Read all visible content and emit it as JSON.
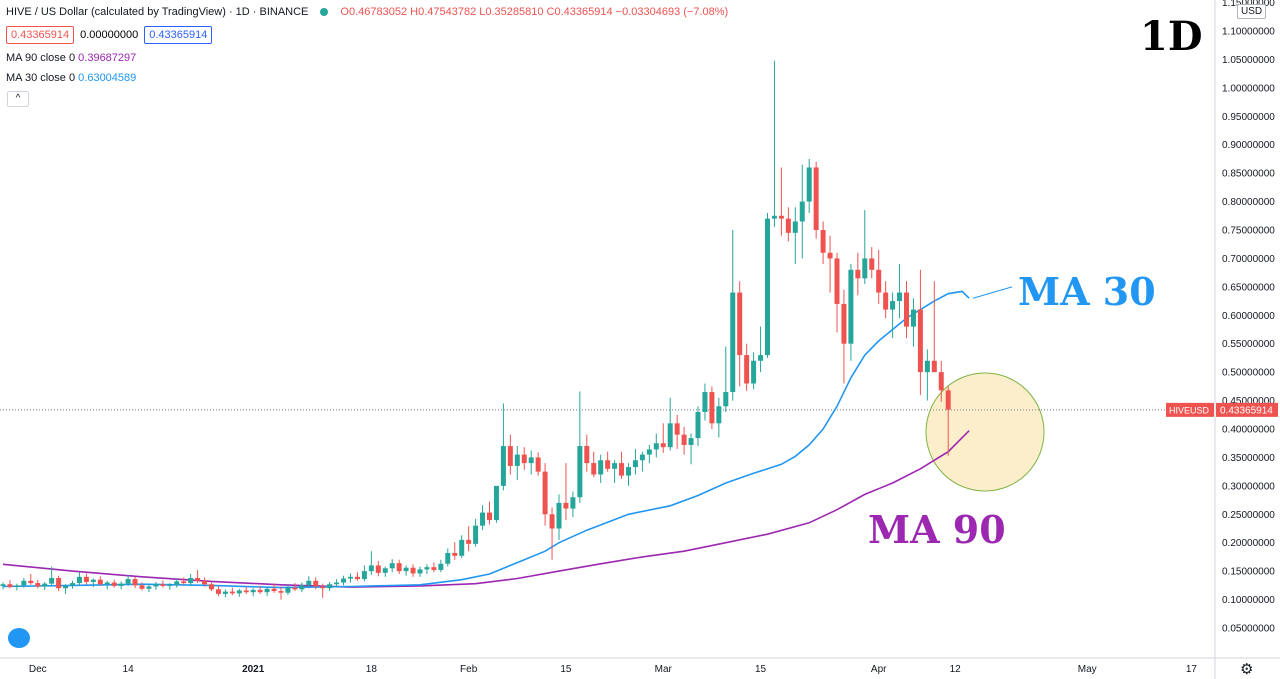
{
  "header": {
    "title": "HIVE / US Dollar (calculated by TradingView) · 1D · BINANCE",
    "ohlc": "O0.46783052 H0.47543782 L0.35285810 C0.43365914 −0.03304693 (−7.08%)",
    "price_box_1": "0.43365914",
    "price_box_2": "0.00000000",
    "price_box_3": "0.43365914",
    "ma90_label": "MA 90 close 0",
    "ma90_value": "0.39687297",
    "ma30_label": "MA 30 close 0",
    "ma30_value": "0.63004589",
    "collapse_glyph": "^"
  },
  "axis": {
    "currency": "USD",
    "symbol_tag": "HIVEUSD",
    "last_price": "0.43365914"
  },
  "annotations": {
    "timeframe": "1D",
    "ma30": "MA 30",
    "ma90": "MA 90"
  },
  "colors": {
    "up": "#26a69a",
    "down": "#ef5350",
    "ma30": "#2196f3",
    "ma90": "#9c27b0",
    "highlight": "#fbe8b8"
  },
  "chart_data": {
    "type": "candlestick",
    "y_ticks": [
      "0.05000000",
      "0.10000000",
      "0.15000000",
      "0.20000000",
      "0.25000000",
      "0.30000000",
      "0.35000000",
      "0.40000000",
      "0.45000000",
      "0.50000000",
      "0.55000000",
      "0.60000000",
      "0.65000000",
      "0.70000000",
      "0.75000000",
      "0.80000000",
      "0.85000000",
      "0.90000000",
      "0.95000000",
      "1.00000000",
      "1.05000000",
      "1.10000000",
      "1.15000000"
    ],
    "ylim": [
      0.0,
      1.17
    ],
    "x_ticks": [
      {
        "label": "Dec",
        "day": 5
      },
      {
        "label": "14",
        "day": 18
      },
      {
        "label": "2021",
        "day": 36
      },
      {
        "label": "18",
        "day": 53
      },
      {
        "label": "Feb",
        "day": 67
      },
      {
        "label": "15",
        "day": 81
      },
      {
        "label": "Mar",
        "day": 95
      },
      {
        "label": "15",
        "day": 109
      },
      {
        "label": "Apr",
        "day": 126
      },
      {
        "label": "12",
        "day": 137
      },
      {
        "label": "May",
        "day": 156
      },
      {
        "label": "17",
        "day": 171
      }
    ],
    "candles": [
      [
        0.124,
        0.13,
        0.118,
        0.127
      ],
      [
        0.127,
        0.134,
        0.12,
        0.122
      ],
      [
        0.122,
        0.128,
        0.116,
        0.125
      ],
      [
        0.125,
        0.138,
        0.121,
        0.133
      ],
      [
        0.133,
        0.145,
        0.126,
        0.129
      ],
      [
        0.129,
        0.135,
        0.12,
        0.123
      ],
      [
        0.123,
        0.131,
        0.117,
        0.128
      ],
      [
        0.128,
        0.158,
        0.124,
        0.138
      ],
      [
        0.138,
        0.142,
        0.115,
        0.12
      ],
      [
        0.12,
        0.127,
        0.11,
        0.124
      ],
      [
        0.124,
        0.133,
        0.119,
        0.129
      ],
      [
        0.129,
        0.148,
        0.125,
        0.14
      ],
      [
        0.14,
        0.146,
        0.126,
        0.131
      ],
      [
        0.131,
        0.137,
        0.122,
        0.135
      ],
      [
        0.135,
        0.141,
        0.124,
        0.127
      ],
      [
        0.127,
        0.133,
        0.118,
        0.13
      ],
      [
        0.13,
        0.135,
        0.121,
        0.124
      ],
      [
        0.124,
        0.132,
        0.118,
        0.128
      ],
      [
        0.128,
        0.143,
        0.124,
        0.136
      ],
      [
        0.136,
        0.14,
        0.12,
        0.125
      ],
      [
        0.125,
        0.13,
        0.116,
        0.119
      ],
      [
        0.119,
        0.127,
        0.113,
        0.123
      ],
      [
        0.123,
        0.131,
        0.117,
        0.127
      ],
      [
        0.127,
        0.134,
        0.121,
        0.124
      ],
      [
        0.124,
        0.129,
        0.117,
        0.126
      ],
      [
        0.126,
        0.136,
        0.121,
        0.132
      ],
      [
        0.132,
        0.139,
        0.126,
        0.129
      ],
      [
        0.129,
        0.145,
        0.124,
        0.138
      ],
      [
        0.138,
        0.152,
        0.129,
        0.133
      ],
      [
        0.133,
        0.139,
        0.123,
        0.127
      ],
      [
        0.127,
        0.132,
        0.115,
        0.118
      ],
      [
        0.118,
        0.124,
        0.106,
        0.11
      ],
      [
        0.11,
        0.118,
        0.104,
        0.114
      ],
      [
        0.114,
        0.121,
        0.108,
        0.111
      ],
      [
        0.111,
        0.119,
        0.105,
        0.116
      ],
      [
        0.116,
        0.123,
        0.11,
        0.113
      ],
      [
        0.113,
        0.12,
        0.106,
        0.117
      ],
      [
        0.117,
        0.124,
        0.11,
        0.113
      ],
      [
        0.113,
        0.122,
        0.106,
        0.119
      ],
      [
        0.119,
        0.128,
        0.112,
        0.115
      ],
      [
        0.115,
        0.123,
        0.1,
        0.112
      ],
      [
        0.112,
        0.126,
        0.108,
        0.121
      ],
      [
        0.121,
        0.129,
        0.115,
        0.118
      ],
      [
        0.118,
        0.13,
        0.113,
        0.125
      ],
      [
        0.125,
        0.141,
        0.12,
        0.133
      ],
      [
        0.133,
        0.139,
        0.118,
        0.123
      ],
      [
        0.123,
        0.128,
        0.103,
        0.12
      ],
      [
        0.12,
        0.131,
        0.115,
        0.127
      ],
      [
        0.127,
        0.136,
        0.121,
        0.13
      ],
      [
        0.13,
        0.142,
        0.125,
        0.137
      ],
      [
        0.137,
        0.146,
        0.13,
        0.14
      ],
      [
        0.14,
        0.148,
        0.133,
        0.136
      ],
      [
        0.136,
        0.16,
        0.132,
        0.15
      ],
      [
        0.15,
        0.185,
        0.143,
        0.16
      ],
      [
        0.16,
        0.168,
        0.141,
        0.147
      ],
      [
        0.147,
        0.158,
        0.14,
        0.155
      ],
      [
        0.155,
        0.171,
        0.148,
        0.164
      ],
      [
        0.164,
        0.17,
        0.145,
        0.15
      ],
      [
        0.15,
        0.16,
        0.142,
        0.156
      ],
      [
        0.156,
        0.162,
        0.14,
        0.146
      ],
      [
        0.146,
        0.158,
        0.14,
        0.153
      ],
      [
        0.153,
        0.162,
        0.145,
        0.157
      ],
      [
        0.157,
        0.165,
        0.148,
        0.152
      ],
      [
        0.152,
        0.17,
        0.148,
        0.163
      ],
      [
        0.163,
        0.19,
        0.158,
        0.182
      ],
      [
        0.182,
        0.201,
        0.17,
        0.177
      ],
      [
        0.177,
        0.213,
        0.173,
        0.205
      ],
      [
        0.205,
        0.229,
        0.185,
        0.198
      ],
      [
        0.198,
        0.242,
        0.193,
        0.23
      ],
      [
        0.23,
        0.266,
        0.222,
        0.253
      ],
      [
        0.253,
        0.272,
        0.232,
        0.24
      ],
      [
        0.24,
        0.29,
        0.235,
        0.3
      ],
      [
        0.3,
        0.445,
        0.292,
        0.37
      ],
      [
        0.37,
        0.39,
        0.32,
        0.335
      ],
      [
        0.335,
        0.37,
        0.31,
        0.355
      ],
      [
        0.355,
        0.368,
        0.328,
        0.34
      ],
      [
        0.34,
        0.362,
        0.32,
        0.35
      ],
      [
        0.35,
        0.359,
        0.318,
        0.325
      ],
      [
        0.325,
        0.34,
        0.23,
        0.25
      ],
      [
        0.25,
        0.262,
        0.17,
        0.225
      ],
      [
        0.225,
        0.285,
        0.205,
        0.27
      ],
      [
        0.27,
        0.34,
        0.24,
        0.26
      ],
      [
        0.26,
        0.29,
        0.245,
        0.28
      ],
      [
        0.28,
        0.466,
        0.27,
        0.37
      ],
      [
        0.37,
        0.39,
        0.325,
        0.34
      ],
      [
        0.34,
        0.36,
        0.315,
        0.32
      ],
      [
        0.32,
        0.355,
        0.305,
        0.345
      ],
      [
        0.345,
        0.36,
        0.325,
        0.33
      ],
      [
        0.33,
        0.345,
        0.305,
        0.34
      ],
      [
        0.34,
        0.36,
        0.312,
        0.318
      ],
      [
        0.318,
        0.34,
        0.3,
        0.333
      ],
      [
        0.333,
        0.365,
        0.32,
        0.345
      ],
      [
        0.345,
        0.36,
        0.325,
        0.355
      ],
      [
        0.355,
        0.372,
        0.34,
        0.364
      ],
      [
        0.364,
        0.392,
        0.35,
        0.375
      ],
      [
        0.375,
        0.41,
        0.358,
        0.368
      ],
      [
        0.368,
        0.455,
        0.362,
        0.41
      ],
      [
        0.41,
        0.425,
        0.365,
        0.39
      ],
      [
        0.39,
        0.404,
        0.355,
        0.372
      ],
      [
        0.372,
        0.392,
        0.338,
        0.384
      ],
      [
        0.384,
        0.44,
        0.37,
        0.43
      ],
      [
        0.43,
        0.48,
        0.415,
        0.465
      ],
      [
        0.465,
        0.475,
        0.4,
        0.41
      ],
      [
        0.41,
        0.455,
        0.385,
        0.44
      ],
      [
        0.44,
        0.545,
        0.43,
        0.465
      ],
      [
        0.465,
        0.75,
        0.45,
        0.64
      ],
      [
        0.64,
        0.66,
        0.475,
        0.53
      ],
      [
        0.53,
        0.55,
        0.467,
        0.48
      ],
      [
        0.48,
        0.535,
        0.47,
        0.52
      ],
      [
        0.52,
        0.58,
        0.5,
        0.53
      ],
      [
        0.53,
        0.78,
        0.525,
        0.77
      ],
      [
        0.77,
        1.048,
        0.755,
        0.775
      ],
      [
        0.775,
        0.86,
        0.74,
        0.77
      ],
      [
        0.77,
        0.79,
        0.73,
        0.745
      ],
      [
        0.745,
        0.79,
        0.69,
        0.765
      ],
      [
        0.765,
        0.865,
        0.7,
        0.8
      ],
      [
        0.8,
        0.875,
        0.78,
        0.86
      ],
      [
        0.86,
        0.87,
        0.735,
        0.75
      ],
      [
        0.75,
        0.765,
        0.69,
        0.71
      ],
      [
        0.71,
        0.74,
        0.64,
        0.7
      ],
      [
        0.7,
        0.71,
        0.57,
        0.62
      ],
      [
        0.62,
        0.645,
        0.48,
        0.55
      ],
      [
        0.55,
        0.69,
        0.52,
        0.68
      ],
      [
        0.68,
        0.71,
        0.635,
        0.665
      ],
      [
        0.665,
        0.785,
        0.655,
        0.7
      ],
      [
        0.7,
        0.72,
        0.665,
        0.68
      ],
      [
        0.68,
        0.715,
        0.62,
        0.64
      ],
      [
        0.64,
        0.66,
        0.595,
        0.61
      ],
      [
        0.61,
        0.64,
        0.56,
        0.625
      ],
      [
        0.625,
        0.69,
        0.595,
        0.64
      ],
      [
        0.64,
        0.66,
        0.56,
        0.58
      ],
      [
        0.58,
        0.63,
        0.545,
        0.61
      ],
      [
        0.61,
        0.68,
        0.46,
        0.5
      ],
      [
        0.5,
        0.54,
        0.45,
        0.52
      ],
      [
        0.52,
        0.66,
        0.5,
        0.5
      ],
      [
        0.5,
        0.52,
        0.448,
        0.468
      ],
      [
        0.468,
        0.475,
        0.353,
        0.434
      ]
    ],
    "ma30": [
      [
        0,
        0.123
      ],
      [
        10,
        0.125
      ],
      [
        20,
        0.127
      ],
      [
        30,
        0.125
      ],
      [
        40,
        0.121
      ],
      [
        50,
        0.123
      ],
      [
        60,
        0.126
      ],
      [
        66,
        0.135
      ],
      [
        70,
        0.145
      ],
      [
        74,
        0.165
      ],
      [
        78,
        0.185
      ],
      [
        80,
        0.2
      ],
      [
        84,
        0.222
      ],
      [
        90,
        0.25
      ],
      [
        96,
        0.265
      ],
      [
        100,
        0.283
      ],
      [
        104,
        0.305
      ],
      [
        108,
        0.322
      ],
      [
        112,
        0.338
      ],
      [
        114,
        0.352
      ],
      [
        116,
        0.372
      ],
      [
        118,
        0.4
      ],
      [
        120,
        0.44
      ],
      [
        122,
        0.49
      ],
      [
        124,
        0.53
      ],
      [
        126,
        0.555
      ],
      [
        128,
        0.575
      ],
      [
        130,
        0.595
      ],
      [
        132,
        0.61
      ],
      [
        134,
        0.625
      ],
      [
        136,
        0.638
      ],
      [
        138,
        0.642
      ],
      [
        139,
        0.63
      ]
    ],
    "ma90": [
      [
        0,
        0.162
      ],
      [
        10,
        0.15
      ],
      [
        20,
        0.14
      ],
      [
        30,
        0.132
      ],
      [
        40,
        0.126
      ],
      [
        50,
        0.122
      ],
      [
        60,
        0.124
      ],
      [
        68,
        0.128
      ],
      [
        74,
        0.137
      ],
      [
        80,
        0.15
      ],
      [
        86,
        0.163
      ],
      [
        92,
        0.175
      ],
      [
        98,
        0.185
      ],
      [
        104,
        0.2
      ],
      [
        110,
        0.215
      ],
      [
        116,
        0.235
      ],
      [
        120,
        0.258
      ],
      [
        124,
        0.285
      ],
      [
        128,
        0.305
      ],
      [
        132,
        0.33
      ],
      [
        136,
        0.36
      ],
      [
        139,
        0.397
      ]
    ]
  }
}
